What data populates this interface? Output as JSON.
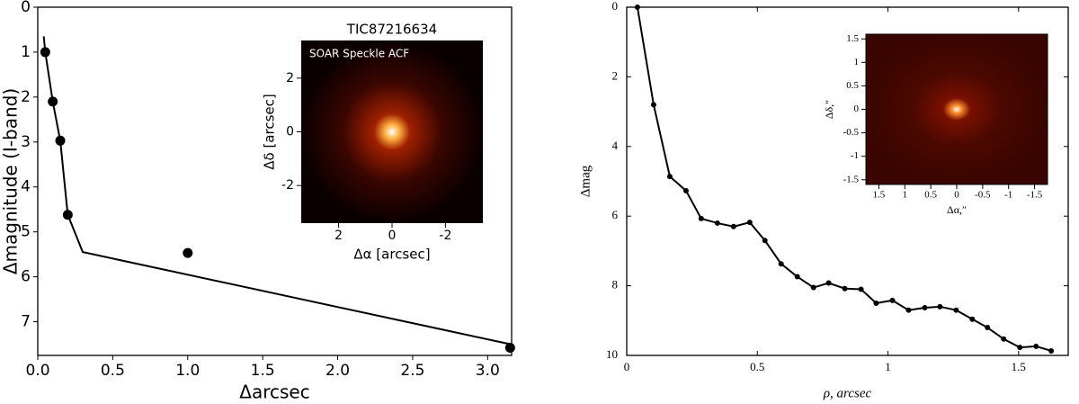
{
  "chart_data": [
    {
      "type": "line",
      "xlabel": "Δarcsec",
      "ylabel": "Δmagnitude (I-band)",
      "invert_y": true,
      "xlim": [
        0,
        3.16
      ],
      "ylim": [
        0,
        7.75
      ],
      "xticks": [
        {
          "value": 0,
          "label": "0.0"
        },
        0.5,
        {
          "value": 1,
          "label": "1.0"
        },
        1.5,
        {
          "value": 2,
          "label": "2.0"
        },
        2.5,
        {
          "value": 3,
          "label": "3.0"
        }
      ],
      "yticks": [
        0,
        1,
        2,
        3,
        4,
        5,
        6,
        7
      ],
      "series": [
        {
          "type": "line",
          "color": "#000000",
          "x": [
            0.04,
            0.05,
            0.1,
            0.15,
            0.2,
            0.3,
            3.15
          ],
          "values": [
            0.65,
            1.0,
            2.1,
            2.97,
            4.62,
            5.45,
            7.5
          ]
        },
        {
          "type": "scatter",
          "color": "#000000",
          "x": [
            0.05,
            0.1,
            0.15,
            0.2,
            1.0,
            3.15
          ],
          "values": [
            1.0,
            2.1,
            2.97,
            4.62,
            5.47,
            7.58
          ]
        }
      ],
      "inset": {
        "title": "TIC87216634",
        "label": "SOAR Speckle ACF",
        "xlabel": "Δα [arcsec]",
        "ylabel": "Δδ [arcsec]",
        "xlim": [
          3.4,
          -3.4
        ],
        "ylim": [
          -3.4,
          3.4
        ],
        "xticks": [
          2,
          0,
          -2
        ],
        "yticks": [
          2,
          0,
          -2
        ]
      }
    },
    {
      "type": "line",
      "xlabel": "ρ, arcsec",
      "ylabel": "Δmag",
      "invert_y": true,
      "xlim": [
        0,
        1.69
      ],
      "ylim": [
        0,
        10
      ],
      "xticks": [
        0,
        0.5,
        1,
        1.5
      ],
      "yticks": [
        0,
        2,
        4,
        6,
        8,
        10
      ],
      "series": [
        {
          "type": "line",
          "markers": true,
          "color": "#000000",
          "x": [
            0.041,
            0.103,
            0.165,
            0.227,
            0.285,
            0.347,
            0.409,
            0.471,
            0.529,
            0.591,
            0.653,
            0.715,
            0.773,
            0.835,
            0.897,
            0.955,
            1.017,
            1.079,
            1.141,
            1.199,
            1.261,
            1.323,
            1.381,
            1.443,
            1.505,
            1.567,
            1.625
          ],
          "values": [
            0,
            2.8,
            4.86,
            5.27,
            6.07,
            6.2,
            6.3,
            6.18,
            6.7,
            7.37,
            7.74,
            8.05,
            7.92,
            8.08,
            8.1,
            8.5,
            8.42,
            8.7,
            8.63,
            8.6,
            8.7,
            8.96,
            9.2,
            9.53,
            9.77,
            9.74,
            9.87
          ]
        }
      ],
      "inset": {
        "xlabel": "Δα,″",
        "ylabel": "Δδ,″",
        "xlim": [
          1.75,
          -1.75
        ],
        "ylim": [
          -1.6,
          1.6
        ],
        "xticks": [
          1.5,
          1,
          0.5,
          0,
          -0.5,
          -1,
          -1.5
        ],
        "yticks": [
          1.5,
          1,
          0.5,
          0,
          -0.5,
          -1,
          -1.5
        ]
      }
    }
  ]
}
